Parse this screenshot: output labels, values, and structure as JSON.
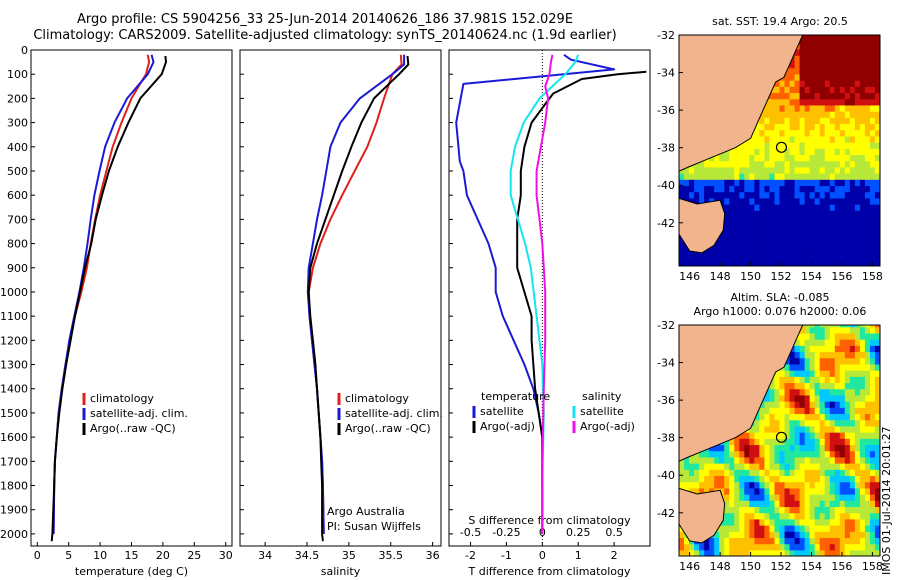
{
  "header": {
    "line1": "Argo profile: CS 5904256_33 25-Jun-2014 20140626_186 37.981S 152.029E",
    "line2": "Climatology: CARS2009. Satellite-adjusted climatology: synTS_20140624.nc (1.9d earlier)"
  },
  "stamp": "IMOS 01-Jul-2014 20:01:27",
  "colors": {
    "climatology": "#e0201b",
    "satellite": "#1a1ad6",
    "argo": "#000000",
    "salinity_satellite": "#12e6ee",
    "salinity_argo": "#ee10e6",
    "land": "#f2b48c"
  },
  "chart_data": [
    {
      "type": "line",
      "panel": "temperature",
      "xlabel": "temperature (deg C)",
      "ylabel": "",
      "xlim": [
        -1,
        31
      ],
      "ylim": [
        2050,
        0
      ],
      "xticks": [
        0,
        5,
        10,
        15,
        20,
        25,
        30
      ],
      "yticks": [
        0,
        100,
        200,
        300,
        400,
        500,
        600,
        700,
        800,
        900,
        1000,
        1100,
        1200,
        1300,
        1400,
        1500,
        1600,
        1700,
        1800,
        1900,
        2000
      ],
      "legend": [
        "climatology",
        "satellite-adj. clim.",
        "Argo(..raw -QC)"
      ],
      "series": [
        {
          "name": "climatology",
          "color_key": "climatology",
          "x": [
            17.6,
            17.8,
            17.3,
            15.0,
            13.4,
            12.0,
            11.0,
            10.0,
            9.2,
            8.5,
            7.9,
            7.0,
            6.0,
            5.2,
            4.5,
            3.9,
            3.4,
            3.1,
            2.8,
            2.7,
            2.6
          ],
          "y": [
            20,
            50,
            100,
            200,
            300,
            400,
            500,
            600,
            700,
            800,
            900,
            1000,
            1100,
            1200,
            1300,
            1400,
            1500,
            1600,
            1700,
            1800,
            2000
          ]
        },
        {
          "name": "satellite-adj. clim.",
          "color_key": "satellite",
          "x": [
            18.2,
            18.5,
            17.6,
            14.3,
            12.3,
            10.8,
            9.9,
            9.1,
            8.5,
            8.0,
            7.4,
            6.7,
            5.9,
            5.1,
            4.5,
            3.9,
            3.4,
            3.1,
            2.8,
            2.7,
            2.6
          ],
          "y": [
            20,
            50,
            100,
            200,
            300,
            400,
            500,
            600,
            700,
            800,
            900,
            1000,
            1100,
            1200,
            1300,
            1400,
            1500,
            1600,
            1700,
            1800,
            2000
          ]
        },
        {
          "name": "Argo(..raw -QC)",
          "color_key": "argo",
          "x": [
            20.4,
            20.5,
            19.8,
            16.4,
            14.5,
            12.8,
            11.4,
            10.3,
            9.3,
            8.6,
            7.6,
            6.8,
            6.0,
            5.3,
            4.6,
            4.0,
            3.5,
            3.1,
            2.8,
            2.7,
            2.4,
            2.3
          ],
          "y": [
            25,
            50,
            100,
            200,
            300,
            400,
            500,
            600,
            700,
            800,
            900,
            1000,
            1100,
            1200,
            1300,
            1400,
            1500,
            1600,
            1700,
            1800,
            2000,
            2030
          ]
        }
      ]
    },
    {
      "type": "line",
      "panel": "salinity",
      "xlabel": "salinity",
      "xlim": [
        33.7,
        36.1
      ],
      "ylim": [
        2050,
        0
      ],
      "xticks": [
        34,
        34.5,
        35,
        35.5,
        36
      ],
      "xticklabels": [
        "34",
        "34.5",
        "35",
        "35.5",
        "36"
      ],
      "legend": [
        "climatology",
        "satellite-adj. clim.",
        "Argo(..raw -QC)"
      ],
      "annotation": [
        "Argo Australia",
        "PI: Susan Wijffels"
      ],
      "series": [
        {
          "name": "climatology",
          "color_key": "climatology",
          "x": [
            35.62,
            35.63,
            35.52,
            35.42,
            35.33,
            35.22,
            35.07,
            34.92,
            34.78,
            34.66,
            34.57,
            34.52,
            34.53,
            34.56,
            34.59,
            34.62,
            34.64,
            34.66,
            34.68,
            34.69,
            34.7
          ],
          "y": [
            20,
            60,
            100,
            200,
            300,
            400,
            500,
            600,
            700,
            800,
            900,
            1000,
            1100,
            1200,
            1300,
            1400,
            1500,
            1600,
            1700,
            1800,
            2000
          ]
        },
        {
          "name": "satellite-adj. clim.",
          "color_key": "satellite",
          "x": [
            35.66,
            35.66,
            35.52,
            35.13,
            34.9,
            34.78,
            34.73,
            34.68,
            34.62,
            34.57,
            34.52,
            34.51,
            34.53,
            34.56,
            34.59,
            34.62,
            34.64,
            34.66,
            34.68,
            34.69,
            34.7
          ],
          "y": [
            20,
            60,
            100,
            200,
            300,
            400,
            500,
            600,
            700,
            800,
            900,
            1000,
            1100,
            1200,
            1300,
            1400,
            1500,
            1600,
            1700,
            1800,
            2000
          ]
        },
        {
          "name": "Argo(..raw -QC)",
          "color_key": "argo",
          "x": [
            35.7,
            35.71,
            35.6,
            35.3,
            35.15,
            35.03,
            34.92,
            34.82,
            34.72,
            34.62,
            34.54,
            34.52,
            34.54,
            34.57,
            34.6,
            34.62,
            34.64,
            34.66,
            34.67,
            34.68,
            34.68,
            34.69
          ],
          "y": [
            25,
            60,
            100,
            200,
            300,
            400,
            500,
            600,
            700,
            800,
            900,
            1000,
            1100,
            1200,
            1300,
            1400,
            1500,
            1600,
            1700,
            1800,
            2000,
            2030
          ]
        }
      ]
    },
    {
      "type": "line",
      "panel": "difference",
      "xlabel": "T difference from climatology",
      "xlabel_top": "S difference from climatology",
      "xlim": [
        -2.6,
        3.0
      ],
      "ylim": [
        2050,
        0
      ],
      "xticks": [
        -2,
        -1,
        0,
        1,
        2
      ],
      "xticks_salinity": [
        -0.5,
        -0.25,
        0,
        0.25,
        0.5
      ],
      "xticklabels_salinity": [
        "-0.5",
        "-0.25",
        "0",
        "0.25",
        "0.5"
      ],
      "legend_temperature_title": "temperature",
      "legend_temperature": [
        "satellite",
        "Argo(-adj)"
      ],
      "legend_salinity_title": "salinity",
      "legend_salinity": [
        "satellite",
        "Argo(-adj)"
      ],
      "series": [
        {
          "name": "satellite",
          "group": "temperature",
          "color_key": "satellite",
          "x": [
            0.6,
            0.8,
            2.0,
            -2.2,
            -2.4,
            -2.3,
            -2.2,
            -2.1,
            -1.8,
            -1.5,
            -1.3,
            -1.3,
            -1.1,
            -0.8,
            -0.5,
            -0.25,
            -0.1,
            0,
            0,
            0
          ],
          "y": [
            20,
            40,
            80,
            140,
            300,
            460,
            500,
            600,
            700,
            800,
            900,
            1000,
            1100,
            1200,
            1300,
            1400,
            1500,
            1600,
            1800,
            2000
          ]
        },
        {
          "name": "Argo(-adj)",
          "group": "temperature",
          "color_key": "argo",
          "x": [
            2.9,
            2.1,
            1.1,
            0.3,
            0.1,
            -0.3,
            -0.5,
            -0.6,
            -0.6,
            -0.7,
            -0.7,
            -0.5,
            -0.3,
            -0.3,
            -0.2,
            -0.1,
            0,
            0,
            0
          ],
          "y": [
            90,
            100,
            120,
            180,
            220,
            300,
            400,
            500,
            600,
            700,
            900,
            1000,
            1100,
            1200,
            1400,
            1500,
            1600,
            1800,
            2000
          ]
        },
        {
          "name": "satellite",
          "group": "salinity",
          "color_key": "salinity_satellite",
          "x": [
            0.25,
            0.23,
            0.16,
            -0.02,
            -0.13,
            -0.19,
            -0.22,
            -0.22,
            -0.17,
            -0.12,
            -0.08,
            -0.04,
            0,
            0.01,
            0,
            0
          ],
          "y": [
            20,
            50,
            100,
            200,
            300,
            400,
            500,
            600,
            700,
            800,
            900,
            1100,
            1300,
            1500,
            1800,
            2000
          ]
        },
        {
          "name": "Argo(-adj)",
          "group": "salinity",
          "color_key": "salinity_argo",
          "x": [
            0.07,
            0.06,
            0.05,
            0.02,
            0.04,
            0.02,
            -0.01,
            -0.04,
            -0.04,
            -0.02,
            0,
            0.01,
            0.02,
            0.02,
            0.01,
            0,
            0
          ],
          "y": [
            20,
            50,
            100,
            150,
            200,
            300,
            400,
            500,
            600,
            700,
            800,
            900,
            1000,
            1200,
            1400,
            1700,
            2000
          ]
        }
      ]
    },
    {
      "type": "heatmap",
      "panel": "sst-map",
      "title": "sat. SST: 19.4  Argo: 20.5",
      "xlim": [
        145.3,
        158.5
      ],
      "ylim": [
        -44.3,
        -32
      ],
      "xticks": [
        146,
        148,
        150,
        152,
        154,
        156,
        158
      ],
      "yticks": [
        -32,
        -34,
        -36,
        -38,
        -40,
        -42
      ],
      "marker": {
        "lon": 152.029,
        "lat": -37.981
      },
      "colorscale": [
        "#0000aa",
        "#0050ff",
        "#00c8ff",
        "#20e8a0",
        "#b8e838",
        "#ffff00",
        "#ffc000",
        "#ff6000",
        "#d01010",
        "#900000"
      ]
    },
    {
      "type": "heatmap",
      "panel": "sla-map",
      "title_lines": [
        "Altim. SLA: -0.085",
        "Argo h1000: 0.076  h2000: 0.06"
      ],
      "xlim": [
        145.3,
        158.5
      ],
      "ylim": [
        -44.3,
        -32
      ],
      "xticks": [
        146,
        148,
        150,
        152,
        154,
        156,
        158
      ],
      "yticks": [
        -32,
        -34,
        -36,
        -38,
        -40,
        -42
      ],
      "marker": {
        "lon": 152.029,
        "lat": -37.981
      },
      "colorscale": [
        "#0000aa",
        "#0050ff",
        "#00c8ff",
        "#20e8a0",
        "#b8e838",
        "#ffff00",
        "#ffc000",
        "#ff6000",
        "#d01010",
        "#900000"
      ]
    }
  ]
}
